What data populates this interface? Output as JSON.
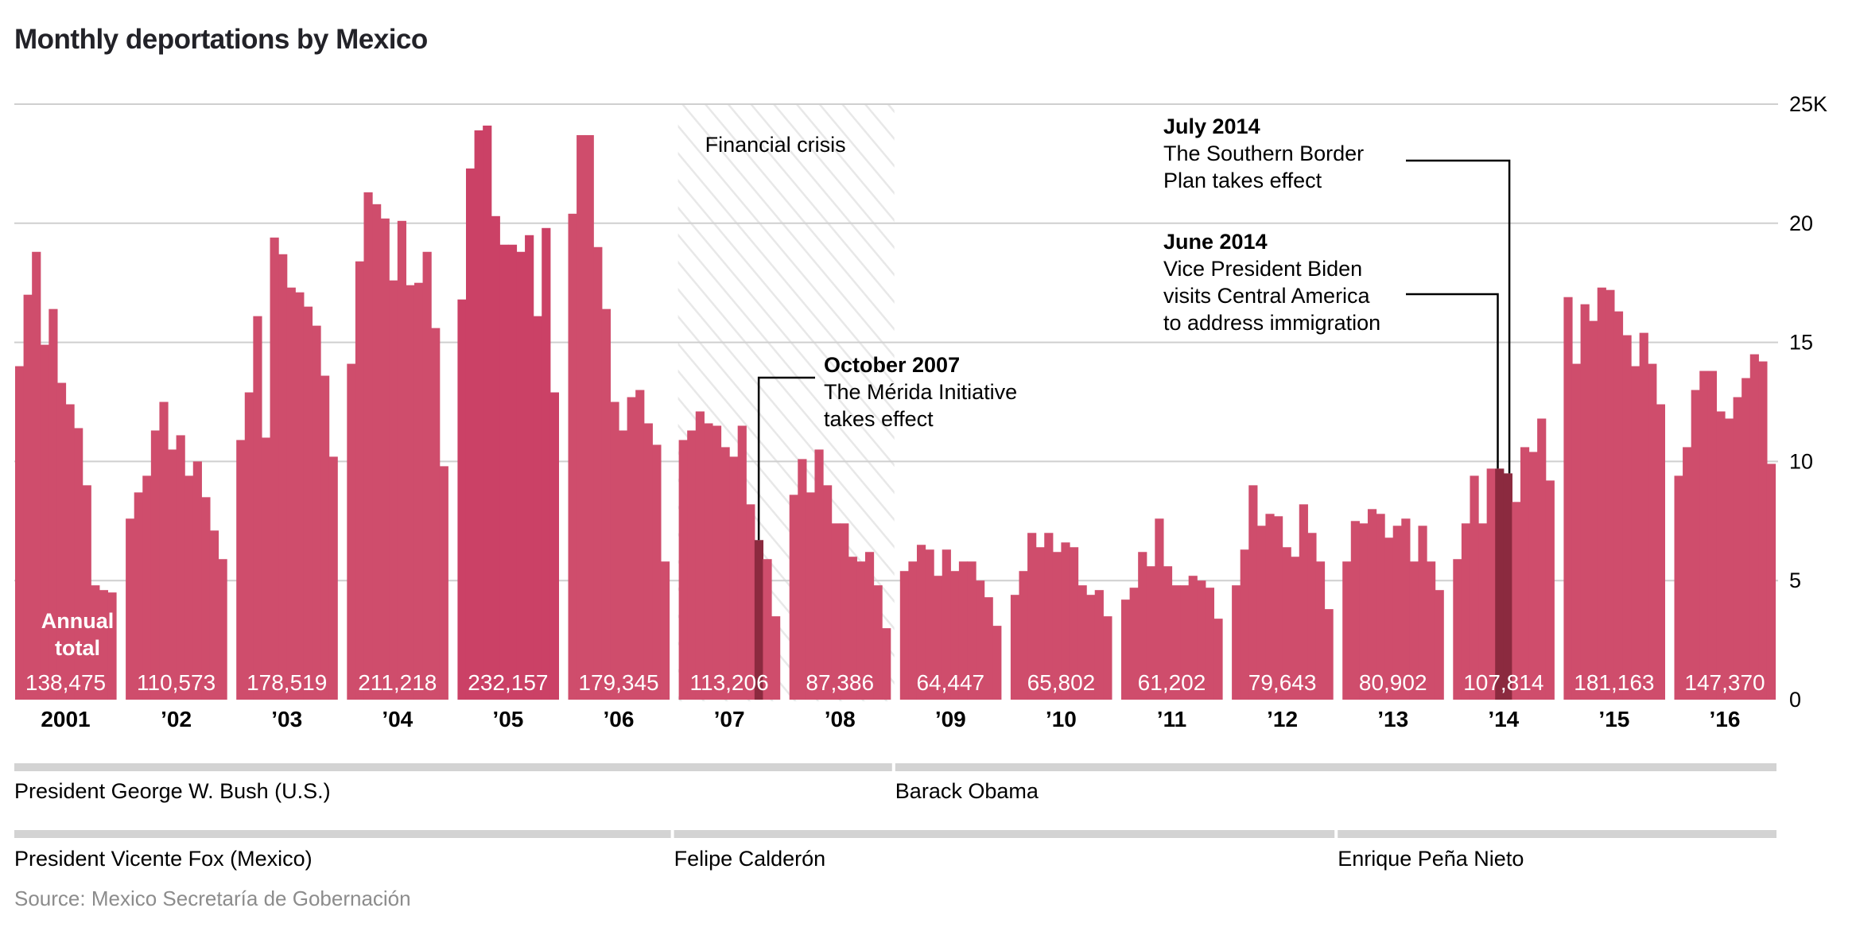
{
  "chart_data": {
    "type": "bar",
    "title": "Monthly deportations by Mexico",
    "xlabel": "",
    "ylabel": "",
    "ylim": [
      0,
      25000
    ],
    "yticks": [
      {
        "value": 0,
        "label": "0"
      },
      {
        "value": 5000,
        "label": "5"
      },
      {
        "value": 10000,
        "label": "10"
      },
      {
        "value": 15000,
        "label": "15"
      },
      {
        "value": 20000,
        "label": "20"
      },
      {
        "value": 25000,
        "label": "25K"
      }
    ],
    "grid": true,
    "annual_total_label": [
      "Annual",
      "total"
    ],
    "years": [
      {
        "label": "2001",
        "total": "138,475",
        "monthly": [
          14000,
          17000,
          18800,
          14900,
          16400,
          13300,
          12400,
          11400,
          9000,
          4800,
          4600,
          4500
        ]
      },
      {
        "label": "’02",
        "total": "110,573",
        "monthly": [
          7600,
          8700,
          9400,
          11300,
          12500,
          10500,
          11100,
          9400,
          10000,
          8500,
          7100,
          5900
        ]
      },
      {
        "label": "’03",
        "total": "178,519",
        "monthly": [
          10900,
          12900,
          16100,
          11000,
          19400,
          18700,
          17300,
          17100,
          16500,
          15700,
          13600,
          10200
        ]
      },
      {
        "label": "’04",
        "total": "211,218",
        "monthly": [
          14100,
          18400,
          21300,
          20800,
          20200,
          17600,
          20100,
          17400,
          17500,
          18800,
          15600,
          9800
        ]
      },
      {
        "label": "’05",
        "total": "232,157",
        "monthly": [
          16800,
          22300,
          23900,
          24100,
          20300,
          19100,
          19100,
          18800,
          19500,
          16100,
          19800,
          12900
        ]
      },
      {
        "label": "’06",
        "total": "179,345",
        "monthly": [
          20400,
          23700,
          23700,
          19000,
          16400,
          12500,
          11300,
          12700,
          13000,
          11600,
          10700,
          5800
        ]
      },
      {
        "label": "’07",
        "total": "113,206",
        "monthly": [
          10900,
          11300,
          12100,
          11600,
          11500,
          10600,
          10200,
          11500,
          8200,
          6700,
          5900,
          3500
        ]
      },
      {
        "label": "’08",
        "total": "87,386",
        "monthly": [
          8600,
          10100,
          8700,
          10500,
          9000,
          7400,
          7400,
          6000,
          5800,
          6200,
          4800,
          3000
        ]
      },
      {
        "label": "’09",
        "total": "64,447",
        "monthly": [
          5400,
          5800,
          6500,
          6300,
          5200,
          6300,
          5400,
          5800,
          5800,
          5000,
          4300,
          3100
        ]
      },
      {
        "label": "’10",
        "total": "65,802",
        "monthly": [
          4400,
          5400,
          7000,
          6400,
          7000,
          6200,
          6600,
          6400,
          4800,
          4400,
          4600,
          3500
        ]
      },
      {
        "label": "’11",
        "total": "61,202",
        "monthly": [
          4200,
          4700,
          6200,
          5600,
          7600,
          5600,
          4800,
          4800,
          5200,
          5000,
          4700,
          3400
        ]
      },
      {
        "label": "’12",
        "total": "79,643",
        "monthly": [
          4800,
          6300,
          9000,
          7300,
          7800,
          7700,
          6400,
          6000,
          8200,
          7000,
          5800,
          3800
        ]
      },
      {
        "label": "’13",
        "total": "80,902",
        "monthly": [
          5800,
          7500,
          7400,
          8000,
          7800,
          6800,
          7300,
          7600,
          5800,
          7300,
          5800,
          4600
        ]
      },
      {
        "label": "’14",
        "total": "107,814",
        "monthly": [
          5900,
          7400,
          9400,
          7400,
          9700,
          9700,
          9500,
          8300,
          10600,
          10400,
          11800,
          9200
        ]
      },
      {
        "label": "’15",
        "total": "181,163",
        "monthly": [
          16900,
          14100,
          16600,
          15900,
          17300,
          17200,
          16300,
          15300,
          14000,
          15400,
          14100,
          12400
        ]
      },
      {
        "label": "’16",
        "total": "147,370",
        "monthly": [
          9400,
          10600,
          13000,
          13800,
          13800,
          12100,
          11800,
          12700,
          13500,
          14500,
          14200,
          9900
        ]
      }
    ],
    "highlighted_months": [
      {
        "year_index": 6,
        "month_index": 9,
        "label": "October 2007"
      },
      {
        "year_index": 13,
        "month_index": 5,
        "label": "June 2014"
      },
      {
        "year_index": 13,
        "month_index": 6,
        "label": "July 2014"
      }
    ],
    "shaded_periods": [
      {
        "label": "Financial crisis",
        "start_year_index": 6,
        "end_year_index": 7
      }
    ],
    "annotations": [
      {
        "heading": "October 2007",
        "lines": [
          "The Mérida Initiative",
          "takes effect"
        ]
      },
      {
        "heading": "July 2014",
        "lines": [
          "The Southern Border",
          "Plan takes effect"
        ]
      },
      {
        "heading": "June 2014",
        "lines": [
          "Vice President Biden",
          "visits Central America",
          "to address immigration"
        ]
      }
    ],
    "terms": {
      "us": [
        {
          "label": "President George W. Bush (U.S.)",
          "start_year_index": 0,
          "end_year_index": 7
        },
        {
          "label": "Barack Obama",
          "start_year_index": 8,
          "end_year_index": 15
        }
      ],
      "mexico": [
        {
          "label": "President Vicente Fox (Mexico)",
          "start_year_index": 0,
          "end_year_index": 5
        },
        {
          "label": "Felipe Calderón",
          "start_year_index": 6,
          "end_year_index": 11
        },
        {
          "label": "Enrique Peña Nieto",
          "start_year_index": 12,
          "end_year_index": 15
        }
      ]
    },
    "source": "Source: Mexico Secretaría de Gobernación",
    "colors": {
      "bar": "#cf4d6c",
      "bar_highlight": "#8b2a3f",
      "bar_peak_year": "#cb4166",
      "grid": "#cfcfcf",
      "term_bar": "#d3d3d3",
      "source_text": "#8c8c8c"
    }
  }
}
